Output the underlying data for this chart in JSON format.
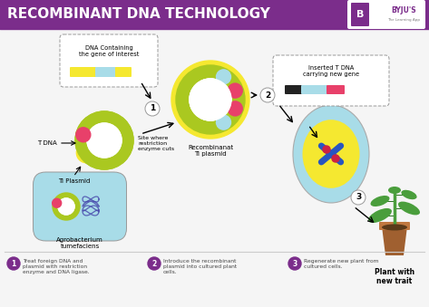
{
  "title": "RECOMBINANT DNA TECHNOLOGY",
  "title_bg": "#7b2d8b",
  "title_color": "#ffffff",
  "bg_color": "#f5f5f5",
  "lime_green": "#aac820",
  "yellow": "#f5e830",
  "cyan_light": "#a8dce8",
  "pink_red": "#e8406a",
  "blue_dark": "#2855c0",
  "red_dark": "#cc2244",
  "brown": "#a06030",
  "brown_light": "#c07840",
  "green_plant": "#4a9e3c",
  "green_dark": "#2a7020",
  "purple": "#7b2d8b",
  "gray_line": "#cccccc",
  "dna_box_text": "DNA Containing\nthe gene of interest",
  "tdna_box_text": "Inserted T DNA\ncarrying new gene",
  "tdna_label": "T DNA",
  "ti_plasmid_label": "Ti Plasmid",
  "agro_label": "Agrobacterium\ntumefaciens",
  "site_label": "Site where\nrestriction\nenzyme cuts",
  "recomb_label": "Recombinanat\nTi plasmid",
  "plant_label": "Plant with\nnew trait",
  "footnote1": "Treat foreign DNA and\nplasmid with restriction\nenzyme and DNA ligase.",
  "footnote2": "Introduce the recombinant\nplasmid into cultured plant\ncells.",
  "footnote3": "Regenerate new plant from\ncultured cells."
}
